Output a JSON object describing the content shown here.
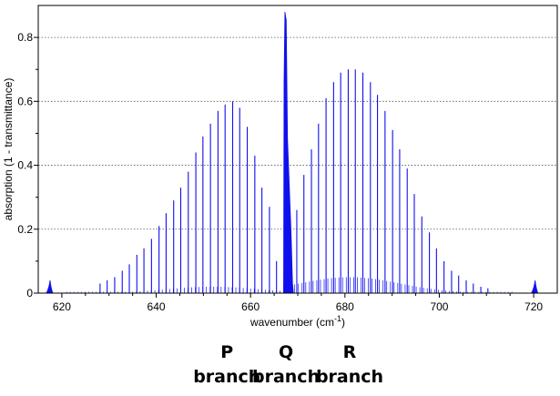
{
  "chart_data": {
    "type": "line",
    "xlabel": "wavenumber (cm",
    "xlabel_sup": "-1",
    "xlabel_tail": ")",
    "ylabel": "absorption (1 - transmittance)",
    "xlim": [
      615,
      725
    ],
    "ylim": [
      0,
      0.9
    ],
    "xticks": [
      620,
      640,
      660,
      680,
      700,
      720
    ],
    "yticks": [
      0,
      0.2,
      0.4,
      0.6,
      0.8
    ],
    "ytick_labels": [
      "0",
      "0.2",
      "0.4",
      "0.6",
      "0.8"
    ],
    "grid": "horizontal dotted",
    "series_color": "#1010ee",
    "series": [
      {
        "branch": "P",
        "line_spacing_cm": 1.56,
        "lines": [
          {
            "x": 628.1,
            "y": 0.03
          },
          {
            "x": 629.6,
            "y": 0.04
          },
          {
            "x": 631.2,
            "y": 0.05
          },
          {
            "x": 632.8,
            "y": 0.07
          },
          {
            "x": 634.3,
            "y": 0.09
          },
          {
            "x": 635.9,
            "y": 0.12
          },
          {
            "x": 637.4,
            "y": 0.14
          },
          {
            "x": 639.0,
            "y": 0.17
          },
          {
            "x": 640.6,
            "y": 0.21
          },
          {
            "x": 642.1,
            "y": 0.25
          },
          {
            "x": 643.7,
            "y": 0.29
          },
          {
            "x": 645.2,
            "y": 0.33
          },
          {
            "x": 646.8,
            "y": 0.38
          },
          {
            "x": 648.4,
            "y": 0.44
          },
          {
            "x": 649.9,
            "y": 0.49
          },
          {
            "x": 651.5,
            "y": 0.53
          },
          {
            "x": 653.1,
            "y": 0.57
          },
          {
            "x": 654.6,
            "y": 0.59
          },
          {
            "x": 656.2,
            "y": 0.6
          },
          {
            "x": 657.7,
            "y": 0.58
          },
          {
            "x": 659.3,
            "y": 0.52
          },
          {
            "x": 660.9,
            "y": 0.43
          },
          {
            "x": 662.4,
            "y": 0.33
          },
          {
            "x": 664.0,
            "y": 0.27
          },
          {
            "x": 665.5,
            "y": 0.1
          }
        ]
      },
      {
        "branch": "Q",
        "peak_x": 667.4,
        "peak_y": 0.88,
        "width_cm": [
          667.0,
          668.6
        ]
      },
      {
        "branch": "R",
        "line_spacing_cm": 1.56,
        "lines": [
          {
            "x": 669.8,
            "y": 0.26
          },
          {
            "x": 671.3,
            "y": 0.37
          },
          {
            "x": 672.9,
            "y": 0.45
          },
          {
            "x": 674.4,
            "y": 0.53
          },
          {
            "x": 676.0,
            "y": 0.61
          },
          {
            "x": 677.6,
            "y": 0.66
          },
          {
            "x": 679.1,
            "y": 0.69
          },
          {
            "x": 680.7,
            "y": 0.7
          },
          {
            "x": 682.2,
            "y": 0.7
          },
          {
            "x": 683.8,
            "y": 0.69
          },
          {
            "x": 685.4,
            "y": 0.66
          },
          {
            "x": 686.9,
            "y": 0.62
          },
          {
            "x": 688.5,
            "y": 0.57
          },
          {
            "x": 690.1,
            "y": 0.51
          },
          {
            "x": 691.6,
            "y": 0.45
          },
          {
            "x": 693.2,
            "y": 0.39
          },
          {
            "x": 694.7,
            "y": 0.31
          },
          {
            "x": 696.3,
            "y": 0.24
          },
          {
            "x": 697.9,
            "y": 0.19
          },
          {
            "x": 699.4,
            "y": 0.14
          },
          {
            "x": 701.0,
            "y": 0.1
          },
          {
            "x": 702.6,
            "y": 0.07
          },
          {
            "x": 704.1,
            "y": 0.055
          },
          {
            "x": 705.7,
            "y": 0.04
          },
          {
            "x": 707.2,
            "y": 0.03
          },
          {
            "x": 708.8,
            "y": 0.02
          },
          {
            "x": 710.3,
            "y": 0.015
          }
        ]
      },
      {
        "branch": "edge",
        "peaks": [
          {
            "x": 617.5,
            "y": 0.04
          },
          {
            "x": 720.3,
            "y": 0.04
          }
        ]
      }
    ],
    "annotations": [
      {
        "line1": "P",
        "line2": "branch",
        "anchor_x": 655
      },
      {
        "line1": "Q",
        "line2": "branch",
        "anchor_x": 667.5
      },
      {
        "line1": "R",
        "line2": "branch",
        "anchor_x": 681
      }
    ]
  }
}
